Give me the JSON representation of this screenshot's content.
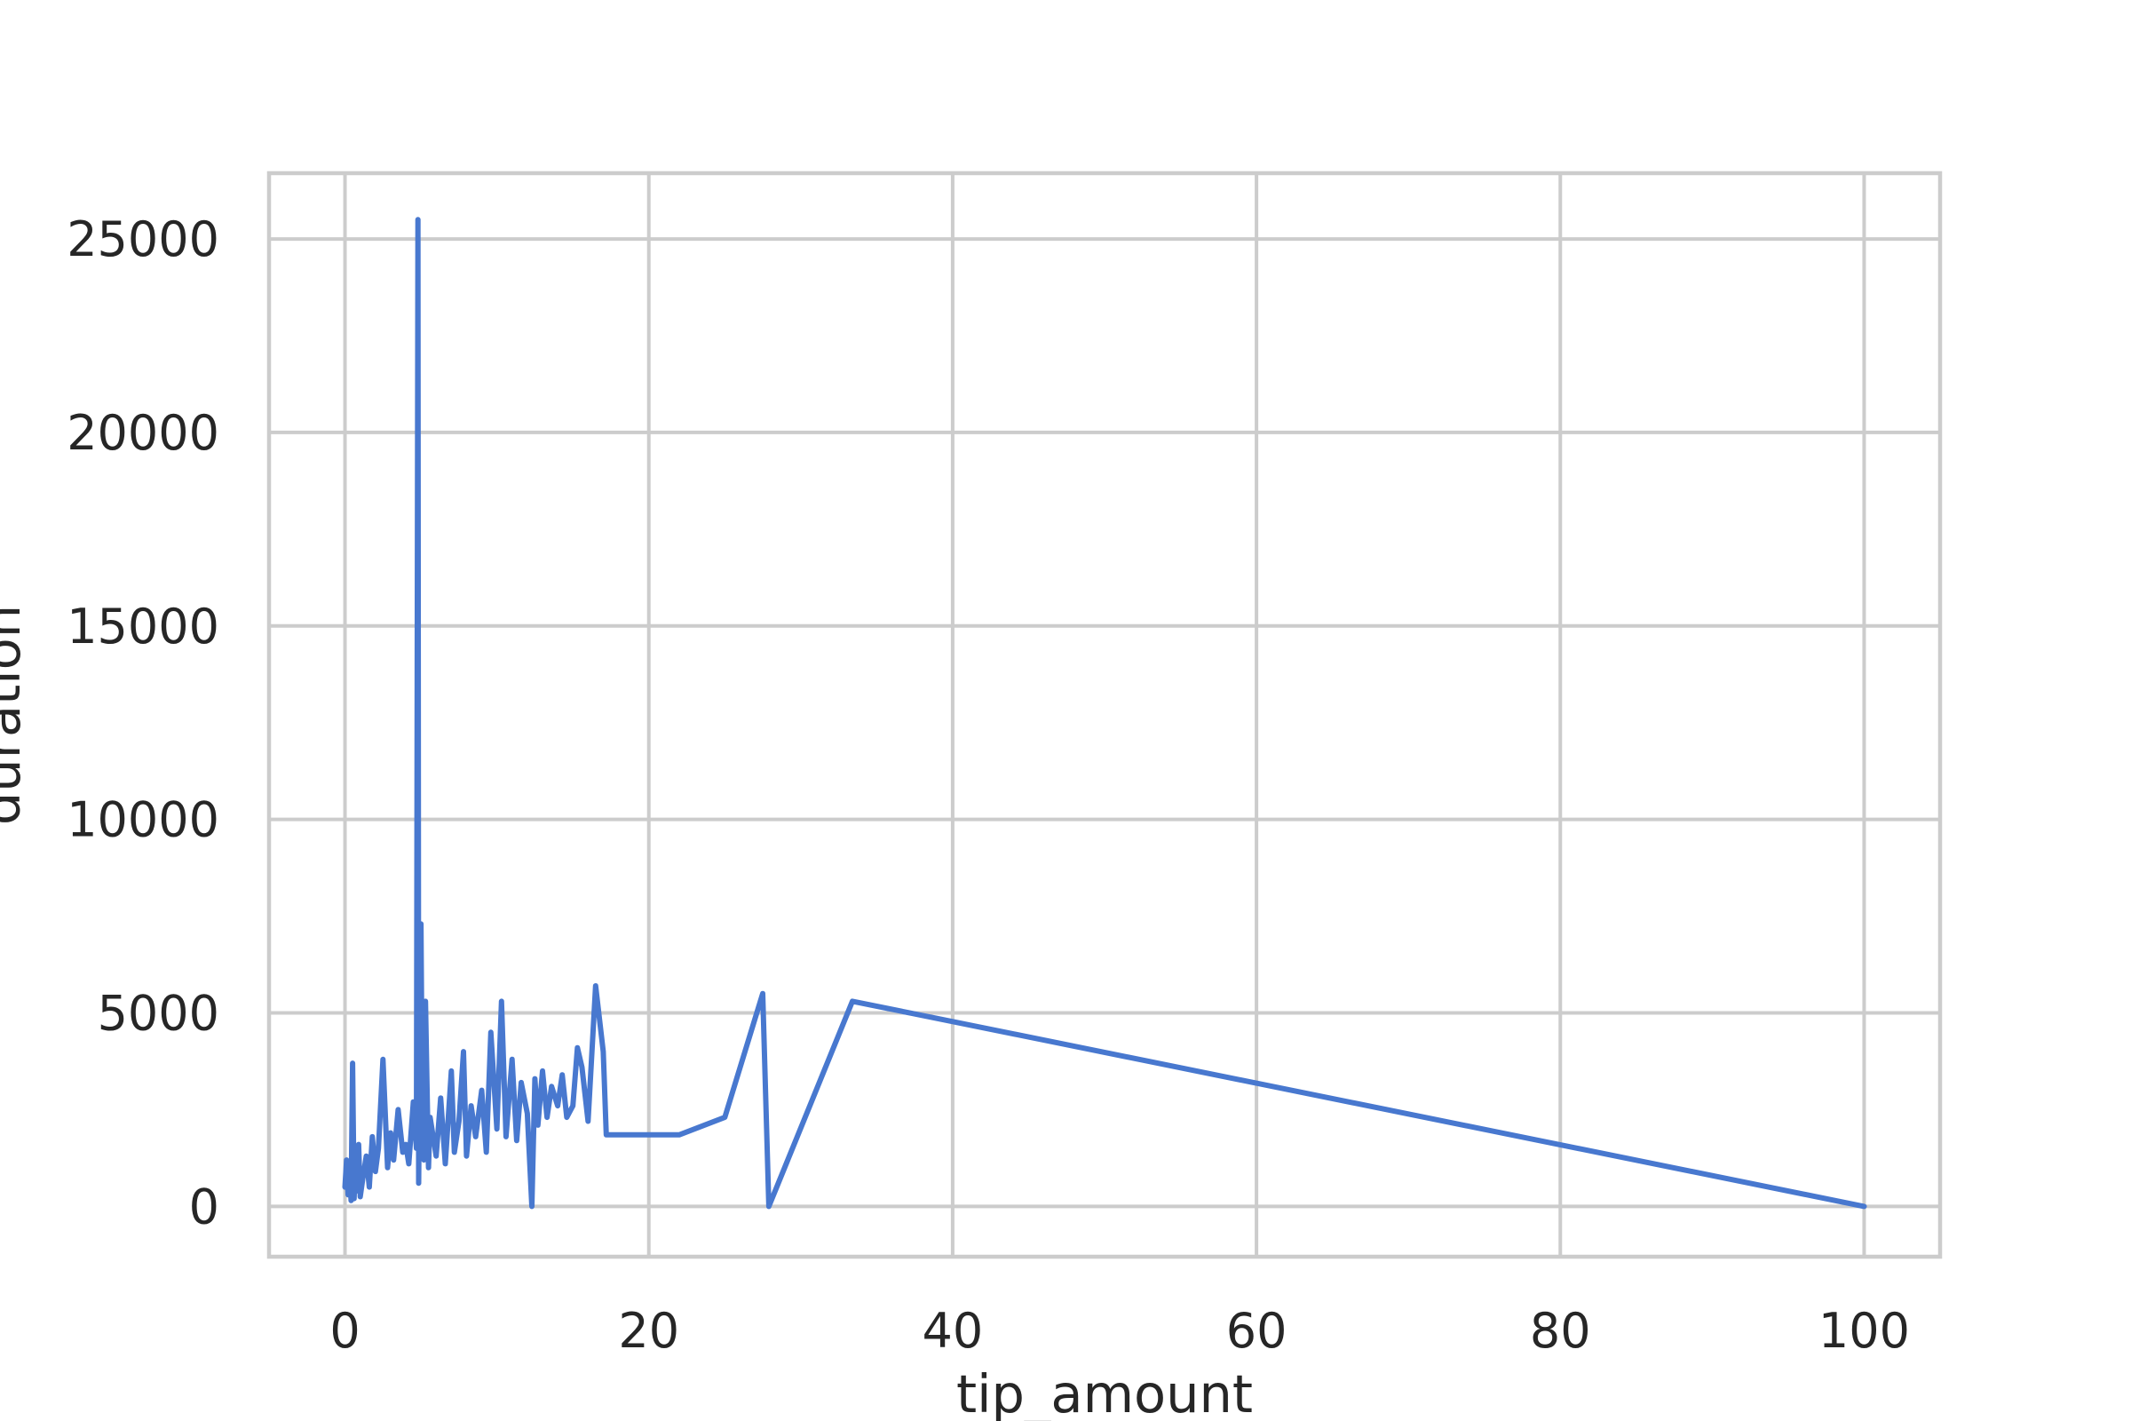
{
  "chart_data": {
    "type": "line",
    "title": "",
    "xlabel": "tip_amount",
    "ylabel": "duration",
    "xlim": [
      -5,
      105
    ],
    "ylim": [
      -1300,
      26700
    ],
    "xticks": [
      0,
      20,
      40,
      60,
      80,
      100
    ],
    "yticks": [
      0,
      5000,
      10000,
      15000,
      20000,
      25000
    ],
    "grid": true,
    "legend": false,
    "colors": {
      "line": "#4878cf",
      "grid": "#cccccc",
      "text": "#262626"
    },
    "series": [
      {
        "x": [
          0,
          0.1,
          0.2,
          0.3,
          0.4,
          0.5,
          0.6,
          0.7,
          0.8,
          0.9,
          1.0,
          1.2,
          1.4,
          1.6,
          1.8,
          2.0,
          2.2,
          2.5,
          2.8,
          3.0,
          3.2,
          3.5,
          3.8,
          4.0,
          4.2,
          4.5,
          4.7,
          4.8,
          4.85,
          5.0,
          5.1,
          5.2,
          5.3,
          5.5,
          5.6,
          6.0,
          6.3,
          6.6,
          7.0,
          7.2,
          7.5,
          7.8,
          8.0,
          8.3,
          8.6,
          9.0,
          9.3,
          9.6,
          10.0,
          10.3,
          10.6,
          11.0,
          11.3,
          11.6,
          12.0,
          12.3,
          12.5,
          12.7,
          13.0,
          13.3,
          13.6,
          14.0,
          14.3,
          14.6,
          15.0,
          15.3,
          15.6,
          16.0,
          16.5,
          17.0,
          17.2,
          18.0,
          22.0,
          25.0,
          27.5,
          27.9,
          33.4,
          100.0
        ],
        "y": [
          500,
          1200,
          300,
          900,
          150,
          3700,
          200,
          1300,
          400,
          1600,
          250,
          800,
          1300,
          500,
          1800,
          900,
          1500,
          3800,
          1000,
          1900,
          1200,
          2500,
          1400,
          1600,
          1100,
          2700,
          1500,
          25500,
          600,
          7300,
          2000,
          1200,
          5300,
          1000,
          2300,
          1300,
          2800,
          1100,
          3500,
          1400,
          2200,
          4000,
          1300,
          2600,
          1800,
          3000,
          1400,
          4500,
          2000,
          5300,
          1800,
          3800,
          1700,
          3200,
          2400,
          0,
          3300,
          2100,
          3500,
          2300,
          3100,
          2600,
          3400,
          2300,
          2600,
          4100,
          3600,
          2200,
          5700,
          4000,
          1850,
          1850,
          1850,
          2300,
          5500,
          0,
          5300,
          0
        ]
      }
    ]
  }
}
